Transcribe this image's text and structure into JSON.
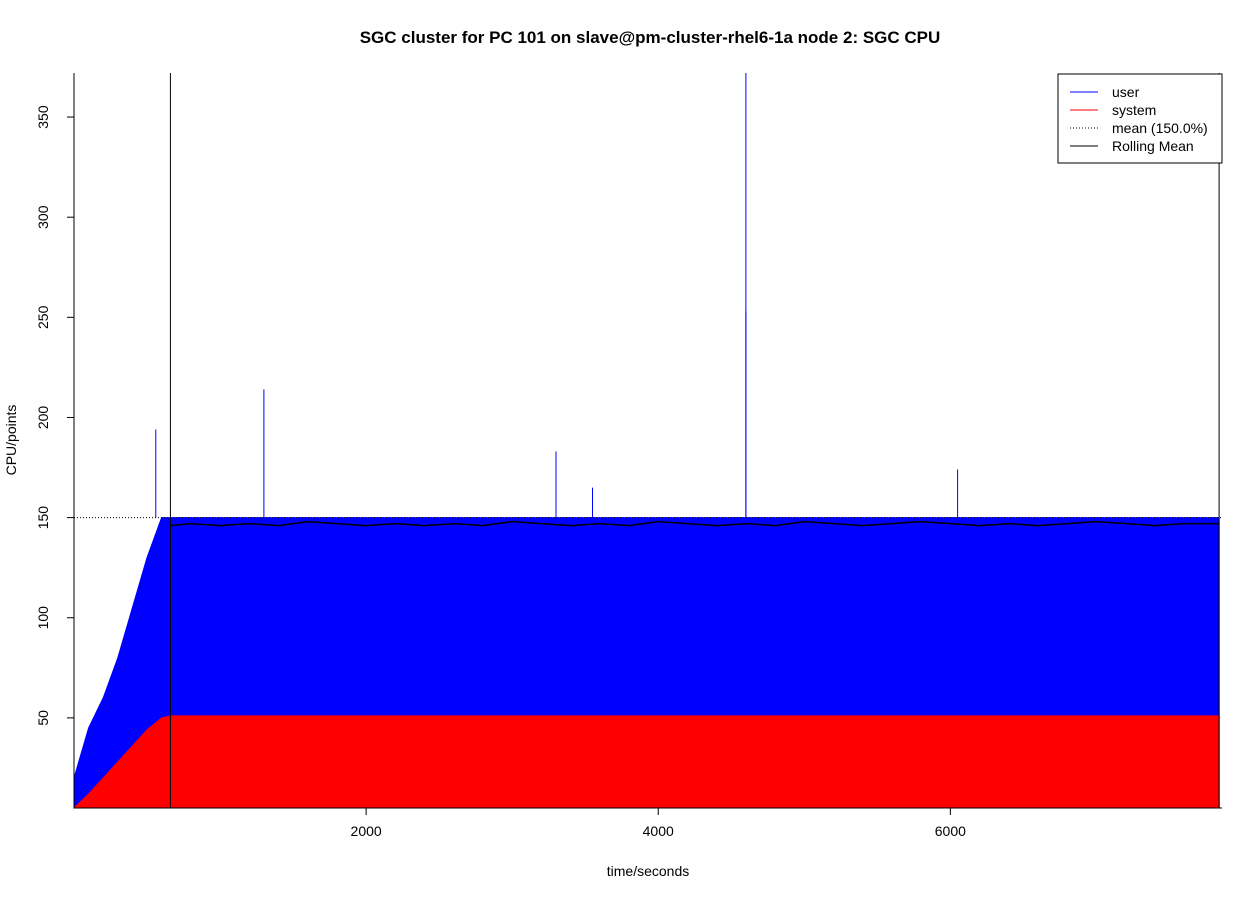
{
  "chart_data": {
    "type": "area",
    "title": "SGC cluster for PC 101 on slave@pm-cluster-rhel6-1a node 2: SGC CPU",
    "xlabel": "time/seconds",
    "ylabel": "CPU/points",
    "xlim": [
      0,
      7860
    ],
    "ylim": [
      5,
      372
    ],
    "x_ticks": [
      2000,
      4000,
      6000
    ],
    "x_tick_labels": [
      "2000",
      "4000",
      "6000"
    ],
    "y_ticks": [
      50,
      100,
      150,
      200,
      250,
      300,
      350
    ],
    "y_tick_labels": [
      "50",
      "100",
      "150",
      "200",
      "250",
      "300",
      "350"
    ],
    "grid": false,
    "legend_position": "top-right",
    "series": [
      {
        "name": "user",
        "color": "#0000ff",
        "x": [
          0,
          100,
          200,
          300,
          400,
          500,
          600,
          660,
          1000,
          2000,
          3000,
          4000,
          5000,
          6000,
          7000,
          7840
        ],
        "values": [
          20,
          45,
          60,
          80,
          105,
          130,
          150,
          150,
          150,
          150,
          150,
          150,
          150,
          150,
          150,
          150
        ]
      },
      {
        "name": "system",
        "color": "#ff0000",
        "x": [
          0,
          100,
          200,
          300,
          400,
          500,
          600,
          660,
          1000,
          2000,
          3000,
          4000,
          5000,
          6000,
          7000,
          7840
        ],
        "values": [
          5,
          12,
          20,
          28,
          36,
          44,
          50,
          51,
          51,
          51,
          51,
          51,
          51,
          51,
          51,
          51
        ]
      },
      {
        "name": "mean (150.0%)",
        "color": "#000000",
        "style": "dotted",
        "value": 150
      },
      {
        "name": "Rolling Mean",
        "color": "#000000",
        "x": [
          660,
          800,
          1000,
          1200,
          1400,
          1600,
          1800,
          2000,
          2200,
          2400,
          2600,
          2800,
          3000,
          3200,
          3400,
          3600,
          3800,
          4000,
          4200,
          4400,
          4600,
          4800,
          5000,
          5200,
          5400,
          5600,
          5800,
          6000,
          6200,
          6400,
          6600,
          6800,
          7000,
          7200,
          7400,
          7600,
          7840
        ],
        "values": [
          146,
          147,
          146,
          147,
          146,
          148,
          147,
          146,
          147,
          146,
          147,
          146,
          148,
          147,
          146,
          147,
          146,
          148,
          147,
          146,
          147,
          146,
          148,
          147,
          146,
          147,
          148,
          147,
          146,
          147,
          146,
          147,
          148,
          147,
          146,
          147,
          147
        ]
      }
    ],
    "spikes": [
      {
        "x": 560,
        "y": 194
      },
      {
        "x": 1300,
        "y": 214
      },
      {
        "x": 3300,
        "y": 183
      },
      {
        "x": 4600,
        "y": 372
      },
      {
        "x": 4600,
        "y": 253
      },
      {
        "x": 3550,
        "y": 165
      },
      {
        "x": 6050,
        "y": 174
      }
    ],
    "vertical_markers": [
      660,
      7840
    ]
  }
}
